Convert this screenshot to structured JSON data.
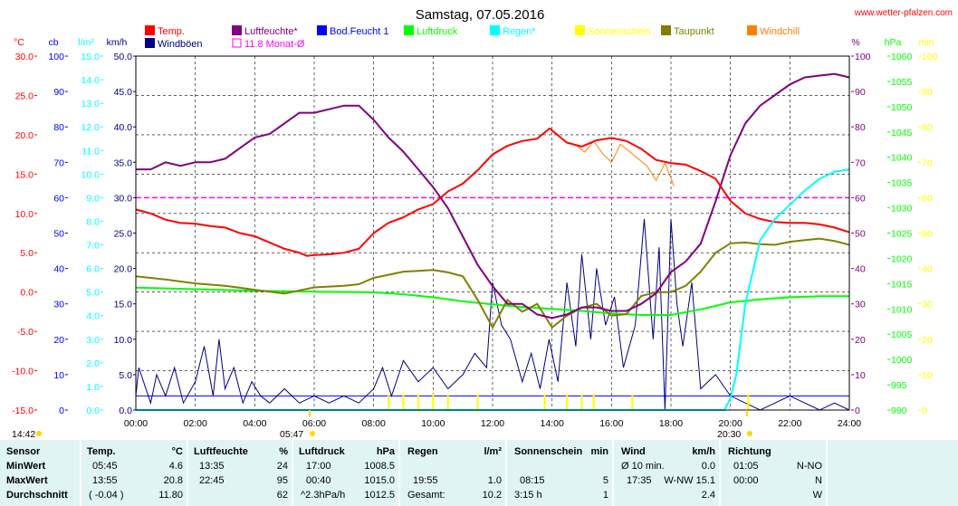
{
  "site": "www.wetter-pfalzen.com",
  "colors": {
    "temp": "#ff0000",
    "humidity": "#800080",
    "soil": "#0000ff",
    "pressure": "#00ff00",
    "rain": "#00ffff",
    "sun": "#ffff00",
    "dewpoint": "#808000",
    "windchill": "#ff8000",
    "gust": "#000080",
    "monthavg": "#ff00ff"
  },
  "chart_data": {
    "type": "line",
    "title": "Samstag, 07.05.2016",
    "x_ticks": [
      "00:00",
      "02:00",
      "04:00",
      "06:00",
      "08:00",
      "10:00",
      "12:00",
      "14:00",
      "16:00",
      "18:00",
      "20:00",
      "22:00",
      "24:00"
    ],
    "x_range_hours": [
      0,
      24
    ],
    "grid": true,
    "axes": {
      "temp": {
        "unit": "°C",
        "range": [
          -15,
          30
        ],
        "ticks": [
          "30.0",
          "25.0",
          "20.0",
          "15.0",
          "10.0",
          "5.0",
          "0.0",
          "-5.0",
          "-10.0",
          "-15.0"
        ]
      },
      "soil": {
        "unit": "cb",
        "range": [
          0,
          100
        ],
        "ticks": [
          "100",
          "90",
          "80",
          "70",
          "60",
          "50",
          "40",
          "30",
          "20",
          "10",
          "0"
        ]
      },
      "rain": {
        "unit": "l/m²",
        "range": [
          0,
          15
        ],
        "ticks": [
          "15.0",
          "14.0",
          "13.0",
          "12.0",
          "11.0",
          "10.0",
          "9.0",
          "8.0",
          "7.0",
          "6.0",
          "5.0",
          "4.0",
          "3.0",
          "2.0",
          "1.0",
          "0.0"
        ]
      },
      "wind": {
        "unit": "km/h",
        "range": [
          0,
          50
        ],
        "ticks": [
          "50.0",
          "45.0",
          "40.0",
          "35.0",
          "30.0",
          "25.0",
          "20.0",
          "15.0",
          "10.0",
          "5.0",
          "0.0"
        ]
      },
      "humidity": {
        "unit": "%",
        "range": [
          0,
          100
        ],
        "ticks": [
          "100",
          "90",
          "80",
          "70",
          "60",
          "50",
          "40",
          "30",
          "20",
          "10",
          "0"
        ]
      },
      "pressure": {
        "unit": "hPa",
        "range": [
          990,
          1060
        ],
        "ticks": [
          "1060",
          "1055",
          "1050",
          "1045",
          "1040",
          "1035",
          "1030",
          "1025",
          "1020",
          "1015",
          "1010",
          "1005",
          "1000",
          "995",
          "990"
        ]
      },
      "sun": {
        "unit": "min",
        "range": [
          0,
          100
        ],
        "ticks": [
          "100",
          "90",
          "80",
          "70",
          "60",
          "50",
          "40",
          "30",
          "20",
          "10",
          "0"
        ]
      }
    },
    "legend": [
      {
        "key": "temp",
        "label": "Temp."
      },
      {
        "key": "gust",
        "label": "Windböen"
      },
      {
        "key": "humidity",
        "label": "Luftfeuchte*"
      },
      {
        "key": "monthavg",
        "label": "11.8 Monat-Ø"
      },
      {
        "key": "soil",
        "label": "Bod.Feucht 1"
      },
      {
        "key": "pressure",
        "label": "Luftdruck"
      },
      {
        "key": "rain",
        "label": "Regen*"
      },
      {
        "key": "sun",
        "label": "Sonnenschein"
      },
      {
        "key": "dewpoint",
        "label": "Taupunkt"
      },
      {
        "key": "windchill",
        "label": "Windchill"
      }
    ],
    "series": [
      {
        "key": "temp",
        "axis": "temp",
        "x": [
          0,
          0.5,
          1,
          1.5,
          2,
          2.5,
          3,
          3.5,
          4,
          4.5,
          5,
          5.5,
          5.75,
          6,
          6.5,
          7,
          7.5,
          8,
          8.5,
          9,
          9.5,
          10,
          10.5,
          11,
          11.5,
          12,
          12.5,
          13,
          13.5,
          13.92,
          14.5,
          15,
          15.5,
          16,
          16.5,
          17,
          17.5,
          18,
          18.5,
          19,
          19.5,
          20,
          20.5,
          21,
          21.5,
          22,
          22.5,
          23,
          23.5,
          24
        ],
        "y": [
          10.5,
          10,
          9.2,
          8.8,
          8.7,
          8.4,
          8.2,
          7.5,
          7.1,
          6.3,
          5.5,
          5,
          4.6,
          4.7,
          4.8,
          5,
          5.5,
          7.5,
          8.8,
          9.5,
          10.5,
          11.2,
          12.8,
          13.8,
          15.5,
          17.5,
          18.6,
          19.2,
          19.5,
          20.8,
          19,
          18.5,
          19.3,
          19.6,
          19.2,
          18.2,
          16.8,
          16.4,
          16.2,
          15.4,
          14.4,
          11.6,
          10,
          9.3,
          8.9,
          8.8,
          8.8,
          8.6,
          8.2,
          7.6
        ]
      },
      {
        "key": "humidity",
        "axis": "humidity",
        "x": [
          0,
          0.5,
          1,
          1.5,
          2,
          2.5,
          3,
          3.5,
          4,
          4.5,
          5,
          5.5,
          6,
          6.5,
          7,
          7.5,
          8,
          8.5,
          9,
          9.5,
          10,
          10.5,
          11,
          11.5,
          12,
          12.5,
          13,
          13.5,
          14,
          14.5,
          15,
          15.5,
          16,
          16.5,
          17,
          17.5,
          18,
          18.5,
          19,
          19.5,
          20,
          20.5,
          21,
          21.5,
          22,
          22.5,
          23,
          23.5,
          24
        ],
        "y": [
          68,
          68,
          70,
          69,
          70,
          70,
          71,
          74,
          77,
          78,
          81,
          84,
          84,
          85,
          86,
          86,
          82,
          77,
          73,
          68,
          63,
          57,
          49,
          41,
          35,
          30,
          30,
          27,
          26,
          27,
          29,
          29,
          28,
          28,
          30,
          33,
          39,
          42,
          47,
          59,
          72,
          81,
          86,
          89,
          92,
          94,
          94.5,
          95,
          94
        ]
      },
      {
        "key": "dewpoint",
        "axis": "temp",
        "x": [
          0,
          1,
          2,
          3,
          4,
          5,
          6,
          7,
          7.5,
          8,
          8.5,
          9,
          9.5,
          10,
          10.5,
          11,
          11.5,
          12,
          12.5,
          13,
          13.5,
          14,
          14.5,
          15,
          15.5,
          16,
          16.5,
          17,
          17.5,
          18,
          18.5,
          19,
          19.5,
          20,
          20.5,
          21,
          21.5,
          22,
          22.5,
          23,
          23.5,
          24
        ],
        "y": [
          2,
          1.6,
          1.1,
          0.8,
          0.3,
          -0.2,
          0.6,
          0.8,
          1,
          1.8,
          2.2,
          2.6,
          2.7,
          2.8,
          2.5,
          2.0,
          -1,
          -4.5,
          -1,
          -2.5,
          -1.5,
          -4.5,
          -3,
          -2,
          -1.5,
          -3,
          -2.8,
          -0.5,
          0,
          0,
          0.8,
          2.6,
          5,
          6.2,
          6.3,
          6.1,
          6,
          6.4,
          6.6,
          6.8,
          6.5,
          6
        ]
      },
      {
        "key": "pressure",
        "axis": "pressure",
        "x": [
          0,
          2,
          4,
          6,
          8,
          9,
          10,
          11,
          12,
          13,
          14,
          15,
          16,
          17,
          18,
          19,
          20,
          21,
          22,
          23,
          24
        ],
        "y": [
          1014.2,
          1013.9,
          1013.6,
          1013.4,
          1013.3,
          1012.9,
          1012.3,
          1011.5,
          1010.9,
          1010.4,
          1010.0,
          1009.6,
          1009.1,
          1008.8,
          1008.8,
          1009.9,
          1011.3,
          1011.9,
          1012.3,
          1012.5,
          1012.5
        ]
      },
      {
        "key": "rain",
        "axis": "rain",
        "x": [
          0,
          19.8,
          20,
          20.2,
          20.5,
          21,
          21.5,
          22,
          22.5,
          23,
          23.5,
          24
        ],
        "y": [
          0,
          0,
          0.5,
          1.5,
          4.5,
          7.2,
          8.1,
          8.7,
          9.3,
          9.8,
          10.1,
          10.2
        ]
      },
      {
        "key": "monthavg",
        "axis": "rain",
        "x": [
          0,
          24
        ],
        "y": [
          9.0,
          9.0
        ]
      },
      {
        "key": "gust",
        "axis": "wind",
        "x": [
          0,
          0.1,
          0.5,
          0.7,
          1,
          1.3,
          1.6,
          2,
          2.3,
          2.6,
          2.8,
          3.0,
          3.3,
          3.6,
          3.9,
          4.2,
          4.5,
          5,
          5.5,
          6,
          6.5,
          7,
          7.5,
          8,
          8.3,
          8.6,
          9,
          9.5,
          10,
          10.5,
          11,
          11.4,
          11.8,
          12,
          12.3,
          12.6,
          13,
          13.3,
          13.6,
          13.9,
          14.2,
          14.5,
          14.8,
          15,
          15.3,
          15.5,
          15.8,
          16.1,
          16.4,
          16.8,
          17.1,
          17.4,
          17.6,
          17.8,
          18,
          18.2,
          18.4,
          18.7,
          19,
          19.5,
          20,
          20.5,
          21,
          21.5,
          22,
          22.5,
          23,
          23.5,
          24
        ],
        "y": [
          2,
          6,
          1,
          5,
          2,
          6,
          1,
          4,
          9,
          2,
          10,
          3,
          6,
          1,
          4,
          2,
          1,
          3,
          1,
          2,
          1,
          2,
          1,
          3,
          6,
          2,
          7,
          4,
          6,
          3,
          5,
          8,
          6,
          18,
          12,
          10,
          4,
          8,
          3,
          10,
          4,
          18,
          9,
          22,
          10,
          20,
          12,
          16,
          6,
          12,
          27,
          10,
          23,
          0,
          27,
          15,
          9,
          18,
          3,
          5,
          2,
          1,
          0,
          1,
          2,
          1,
          0,
          1,
          0
        ]
      },
      {
        "key": "sun",
        "axis": "sun",
        "x": [
          8.5,
          9,
          9.5,
          10,
          10.5,
          11.5,
          13.75,
          14.5,
          15,
          15.4,
          16.7,
          20.6
        ],
        "y": [
          1,
          1,
          1,
          1,
          1,
          1,
          1,
          1,
          1,
          1,
          1,
          1
        ]
      },
      {
        "key": "windchill",
        "axis": "temp",
        "x": [
          14.8,
          15.1,
          15.4,
          15.7,
          16.0,
          16.3,
          17.2,
          17.5,
          17.8,
          18.1
        ],
        "y": [
          18.7,
          17.8,
          19.2,
          17.6,
          16.5,
          18.8,
          16,
          14.2,
          16.4,
          13.5
        ]
      },
      {
        "key": "soil",
        "axis": "soil",
        "x": [
          0,
          24
        ],
        "y": [
          4,
          4
        ]
      }
    ],
    "bottom_markers": [
      {
        "label": "14:42"
      },
      {
        "label": "05:47"
      },
      {
        "label": "20:30"
      }
    ]
  },
  "table": {
    "row_labels": [
      "Sensor",
      "MinWert",
      "MaxWert",
      "Durchschnitt"
    ],
    "temp": {
      "head": "Temp.",
      "unit": "°C",
      "min_time": "05:45",
      "min_val": "4.6",
      "max_time": "13:55",
      "max_val": "20.8",
      "avg_trend": "( -0.04 )",
      "avg_val": "11.80"
    },
    "humidity": {
      "head": "Luftfeuchte",
      "unit": "%",
      "min_time": "13:35",
      "min_val": "24",
      "max_time": "22:45",
      "max_val": "95",
      "avg_val": "62"
    },
    "pressure": {
      "head": "Luftdruck",
      "unit": "hPa",
      "min_time": "17:00",
      "min_val": "1008.5",
      "max_time": "00:40",
      "max_val": "1015.0",
      "avg_trend": "^2.3hPa/h",
      "avg_val": "1012.5"
    },
    "rain": {
      "head": "Regen",
      "unit": "l/m²",
      "max_time": "19:55",
      "max_val": "1.0",
      "total_label": "Gesamt:",
      "total_val": "10.2"
    },
    "sun": {
      "head": "Sonnenschein",
      "unit": "min",
      "max_time": "08:15",
      "max_val": "5",
      "total_time": "3:15 h",
      "total_val": "1"
    },
    "wind": {
      "head": "Wind",
      "unit": "km/h",
      "min_label": "Ø 10 min.",
      "min_val": "0.0",
      "max_time": "17:35",
      "max_val": "W-NW 15.1",
      "avg_val": "2.4"
    },
    "dir": {
      "head": "Richtung",
      "min_time": "01:05",
      "min_val": "N-NO",
      "max_time": "00:00",
      "max_val": "N",
      "avg_val": "W"
    }
  }
}
